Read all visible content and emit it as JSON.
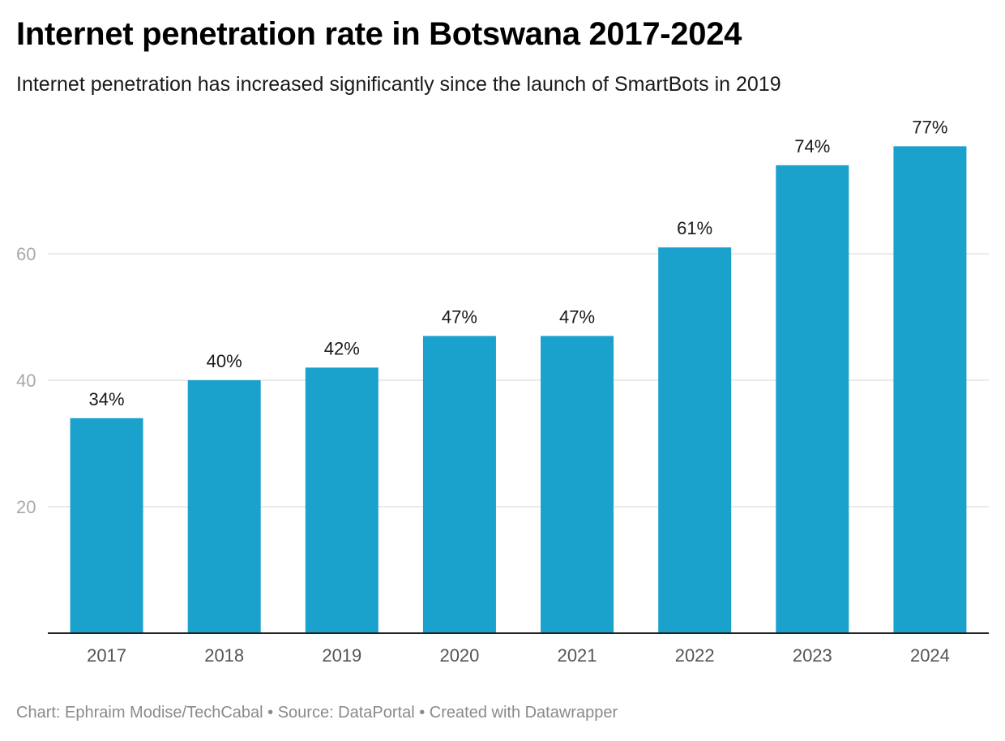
{
  "header": {
    "title": "Internet penetration rate in Botswana 2017-2024",
    "subtitle": "Internet penetration has increased significantly since the launch of SmartBots in 2019"
  },
  "footer": {
    "credit": "Chart: Ephraim Modise/TechCabal • Source: DataPortal • Created with Datawrapper"
  },
  "colors": {
    "bar": "#1aa1cc",
    "gridline": "#e3e3e3",
    "tick_label": "#a9a9a9",
    "x_label": "#555555",
    "value_label": "#1a1a1a",
    "baseline": "#222222"
  },
  "chart_data": {
    "type": "bar",
    "title": "Internet penetration rate in Botswana 2017-2024",
    "subtitle": "Internet penetration has increased significantly since the launch of SmartBots in 2019",
    "categories": [
      "2017",
      "2018",
      "2019",
      "2020",
      "2021",
      "2022",
      "2023",
      "2024"
    ],
    "values": [
      34,
      40,
      42,
      47,
      47,
      61,
      74,
      77
    ],
    "value_labels": [
      "34%",
      "40%",
      "42%",
      "47%",
      "47%",
      "61%",
      "74%",
      "77%"
    ],
    "y_ticks": [
      20,
      40,
      60
    ],
    "ylim": [
      0,
      77
    ],
    "xlabel": "",
    "ylabel": "",
    "grid": true,
    "legend": "none"
  }
}
